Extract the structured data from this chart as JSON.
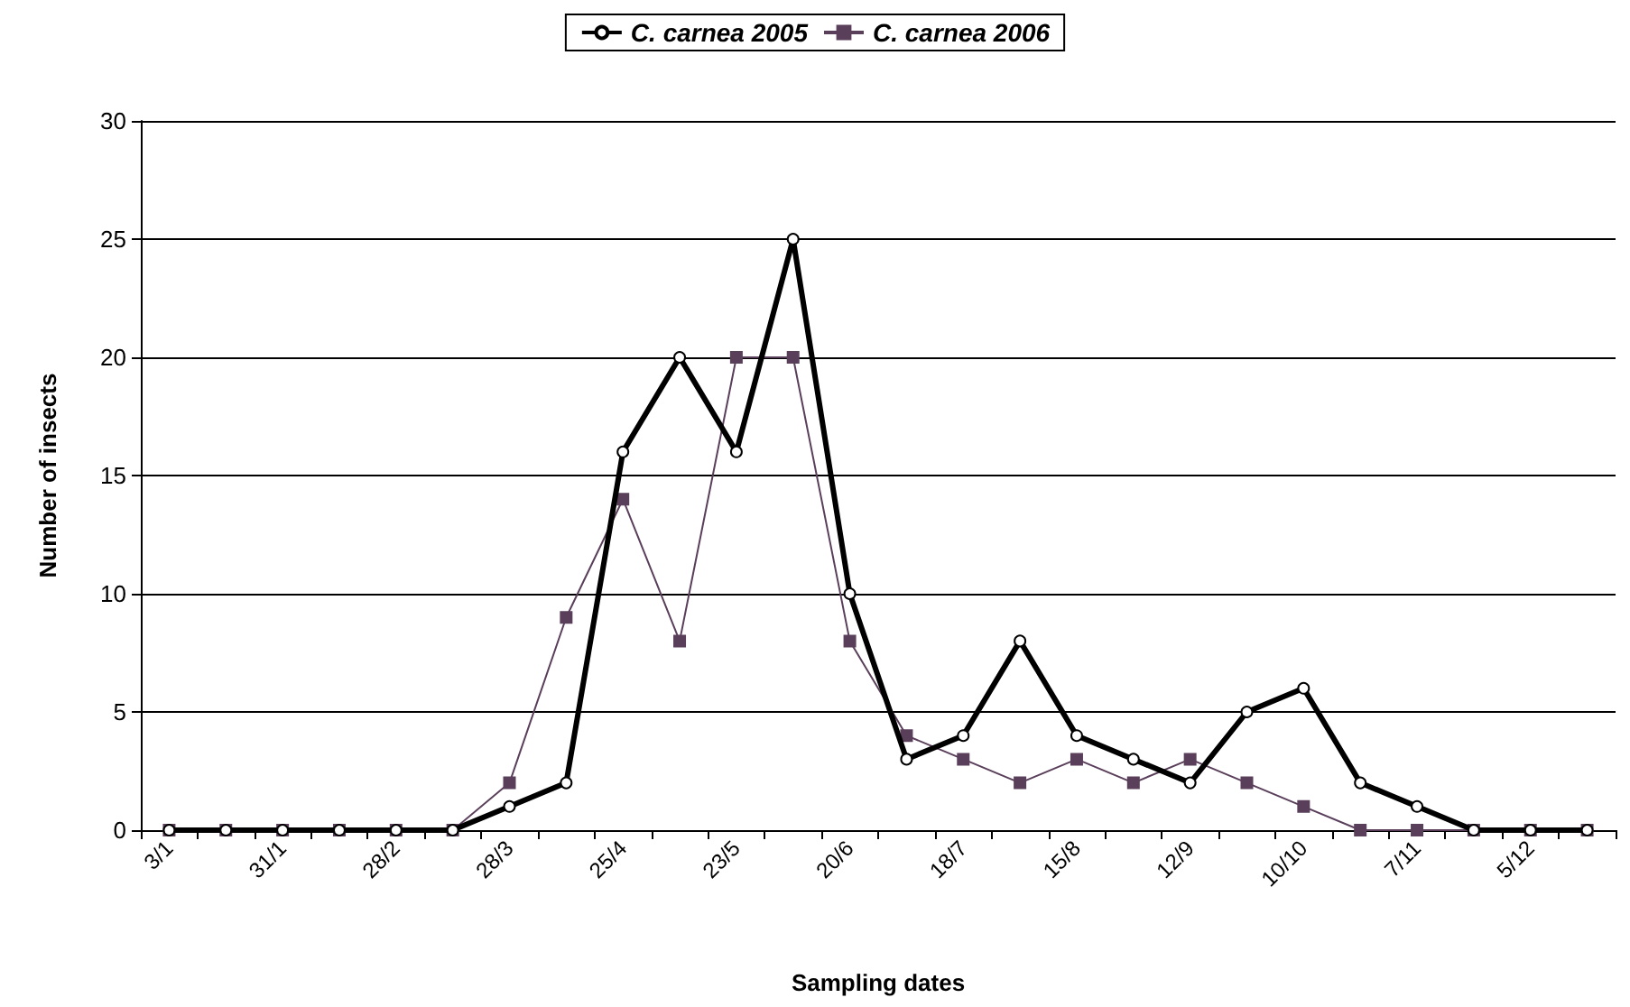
{
  "chart_data": {
    "type": "line",
    "xlabel": "Sampling dates",
    "ylabel": "Number of insects",
    "categories": [
      "3/1",
      null,
      "31/1",
      null,
      "28/2",
      null,
      "28/3",
      null,
      "25/4",
      null,
      "23/5",
      null,
      "20/6",
      null,
      "18/7",
      null,
      "15/8",
      null,
      "12/9",
      null,
      "10/10",
      null,
      "7/11",
      null,
      "5/12",
      null
    ],
    "series": [
      {
        "name": "C. carnea 2005",
        "color": "#000000",
        "marker": "circle",
        "values": [
          0,
          0,
          0,
          0,
          0,
          0,
          1,
          2,
          16,
          20,
          16,
          25,
          10,
          3,
          4,
          8,
          4,
          3,
          2,
          5,
          6,
          2,
          1,
          0,
          0,
          0
        ]
      },
      {
        "name": "C. carnea 2006",
        "color": "#5a3f5a",
        "marker": "square",
        "values": [
          0,
          0,
          0,
          0,
          0,
          0,
          2,
          9,
          14,
          8,
          20,
          20,
          8,
          4,
          3,
          2,
          3,
          2,
          3,
          2,
          1,
          0,
          0,
          0,
          0,
          0
        ]
      }
    ],
    "ylim": [
      0,
      30
    ],
    "yticks": [
      0,
      5,
      10,
      15,
      20,
      25,
      30
    ],
    "grid": "y",
    "legend": "top"
  }
}
